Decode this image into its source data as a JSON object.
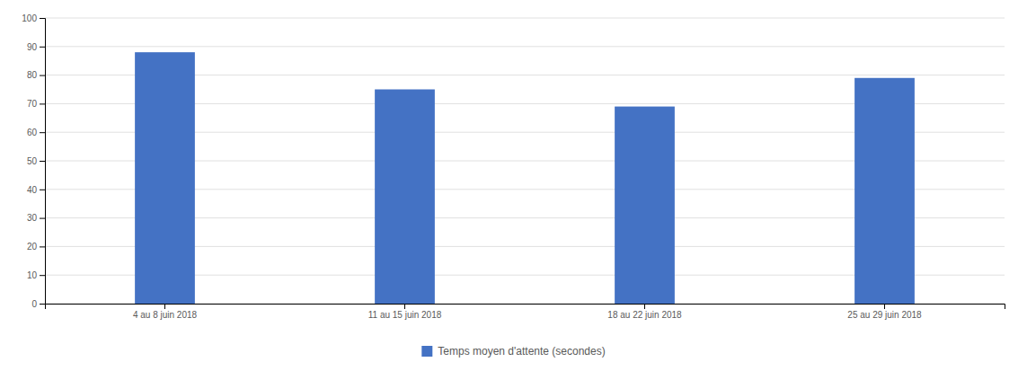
{
  "chart_data": {
    "type": "bar",
    "categories": [
      "4 au 8 juin 2018",
      "11 au 15 juin 2018",
      "18 au 22 juin 2018",
      "25 au 29 juin 2018"
    ],
    "series": [
      {
        "name": "Temps moyen d'attente (secondes)",
        "color": "#4472C4",
        "values": [
          88,
          75,
          69,
          79
        ]
      }
    ],
    "ylim": [
      0,
      100
    ],
    "yticks": [
      0,
      10,
      20,
      30,
      40,
      50,
      60,
      70,
      80,
      90,
      100
    ],
    "grid": true,
    "legend": "bottom"
  }
}
